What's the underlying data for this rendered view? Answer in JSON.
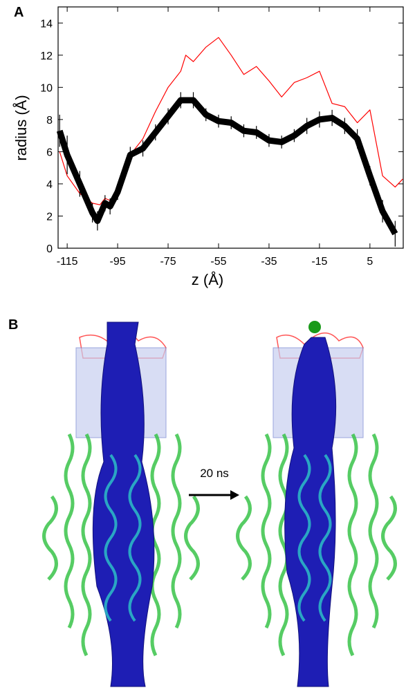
{
  "panel_labels": [
    "A",
    "B"
  ],
  "arrow_label": "20 ns",
  "chart_data": {
    "type": "line",
    "x_label": "z (Å)",
    "y_label": "radius (Å)",
    "xlim": [
      -118.6,
      18.2
    ],
    "xticks": [
      -115,
      -95,
      -75,
      -55,
      -35,
      -15,
      5
    ],
    "ylim": [
      0,
      15
    ],
    "yticks": [
      0,
      2,
      4,
      6,
      8,
      10,
      12,
      14
    ],
    "series": [
      {
        "color": "#ff0000",
        "x": [
          -118,
          -115,
          -110,
          -105,
          -102,
          -100,
          -97,
          -95,
          -90,
          -85,
          -80,
          -75,
          -70,
          -68,
          -65,
          -60,
          -55,
          -50,
          -45,
          -40,
          -35,
          -30,
          -25,
          -20,
          -15,
          -10,
          -5,
          0,
          5,
          10,
          15,
          18
        ],
        "values": [
          6.0,
          4.5,
          3.4,
          2.8,
          2.7,
          3.1,
          2.9,
          3.5,
          5.8,
          6.8,
          8.5,
          10.0,
          11.0,
          12.0,
          11.6,
          12.5,
          13.1,
          12.0,
          10.8,
          11.3,
          10.4,
          9.4,
          10.3,
          10.6,
          11.0,
          9.0,
          8.8,
          7.8,
          8.6,
          4.5,
          3.8,
          4.3
        ]
      },
      {
        "color": "#000000",
        "x": [
          -118,
          -115,
          -110,
          -105,
          -103,
          -100,
          -98,
          -95,
          -90,
          -85,
          -80,
          -75,
          -70,
          -65,
          -60,
          -55,
          -50,
          -45,
          -40,
          -35,
          -30,
          -25,
          -20,
          -15,
          -10,
          -5,
          0,
          5,
          10,
          15
        ],
        "values": [
          7.3,
          5.8,
          4.0,
          2.2,
          1.7,
          2.8,
          2.6,
          3.5,
          5.8,
          6.2,
          7.2,
          8.2,
          9.2,
          9.2,
          8.3,
          7.9,
          7.8,
          7.3,
          7.2,
          6.7,
          6.6,
          7.0,
          7.6,
          8.0,
          8.1,
          7.6,
          6.8,
          4.5,
          2.3,
          0.9
        ],
        "errors": [
          1.0,
          1.2,
          0.8,
          0.6,
          0.6,
          0.5,
          0.5,
          0.5,
          0.5,
          0.5,
          0.5,
          0.5,
          0.5,
          0.5,
          0.4,
          0.4,
          0.4,
          0.4,
          0.4,
          0.4,
          0.4,
          0.4,
          0.5,
          0.5,
          0.5,
          0.5,
          0.6,
          0.6,
          0.7,
          0.8
        ]
      }
    ]
  }
}
